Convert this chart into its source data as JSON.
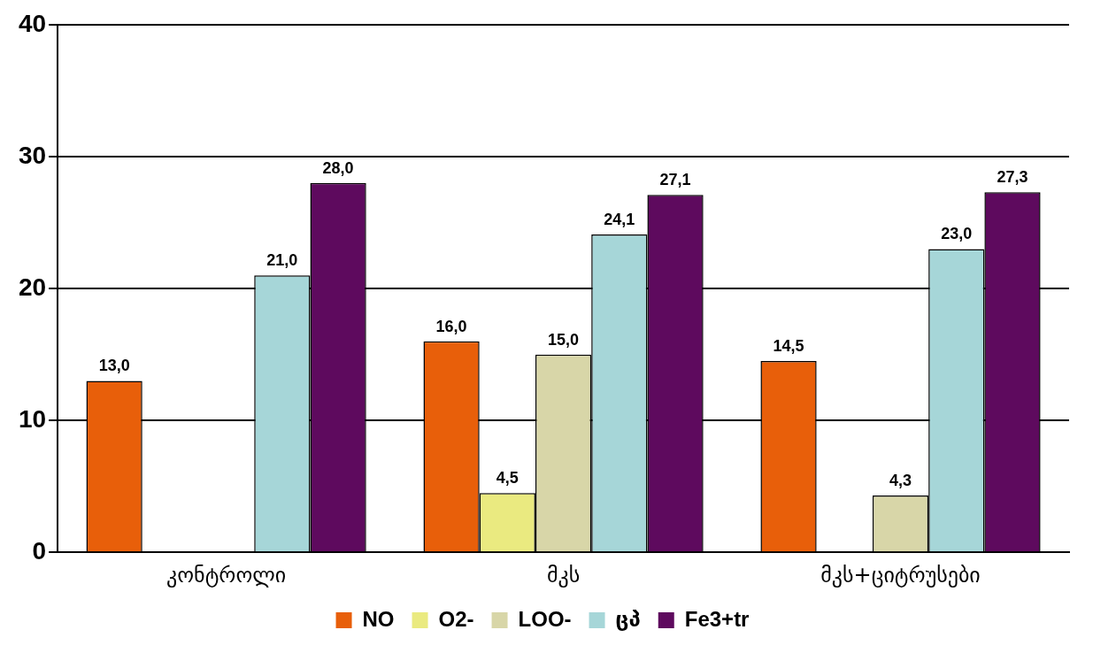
{
  "chart_data": {
    "type": "bar",
    "categories": [
      "კონტროლი",
      "მკს",
      "მკს+ციტრუსები"
    ],
    "series": [
      {
        "name": "NO",
        "color": "#e85f0a",
        "values": [
          13.0,
          16.0,
          14.5
        ],
        "value_labels": [
          "13,0",
          "16,0",
          "14,5"
        ]
      },
      {
        "name": "O2-",
        "color": "#eaea80",
        "values": [
          null,
          4.5,
          null
        ],
        "value_labels": [
          null,
          "4,5",
          null
        ]
      },
      {
        "name": "LOO-",
        "color": "#d8d6a8",
        "values": [
          null,
          15.0,
          4.3
        ],
        "value_labels": [
          null,
          "15,0",
          "4,3"
        ]
      },
      {
        "name": "ცპ",
        "color": "#a6d6d8",
        "values": [
          21.0,
          24.1,
          23.0
        ],
        "value_labels": [
          "21,0",
          "24,1",
          "23,0"
        ]
      },
      {
        "name": "Fe3+tr",
        "color": "#5e0a5e",
        "values": [
          28.0,
          27.1,
          27.3
        ],
        "value_labels": [
          "28,0",
          "27,1",
          "27,3"
        ]
      }
    ],
    "ylim": [
      0,
      40
    ],
    "yticks": [
      0,
      10,
      20,
      30,
      40
    ],
    "grid": "y",
    "legend": "bottom"
  }
}
